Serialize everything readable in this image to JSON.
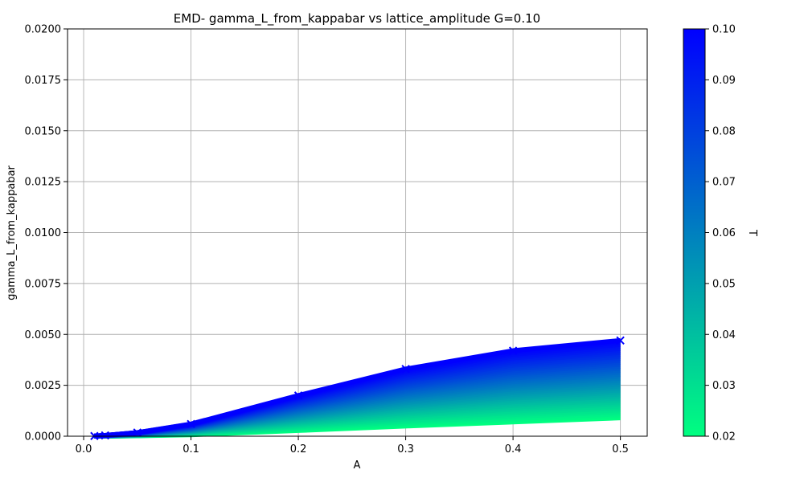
{
  "chart_data": {
    "type": "line",
    "title": "EMD- gamma_L_from_kappabar vs lattice_amplitude G=0.10",
    "xlabel": "A",
    "ylabel": "gamma_L_from_kappabar",
    "xlim": [
      -0.015,
      0.525
    ],
    "ylim": [
      0,
      0.02
    ],
    "x_ticks": [
      0.0,
      0.1,
      0.2,
      0.3,
      0.4,
      0.5
    ],
    "x_tick_labels": [
      "0.0",
      "0.1",
      "0.2",
      "0.3",
      "0.4",
      "0.5"
    ],
    "y_ticks": [
      0,
      0.0025,
      0.005,
      0.0075,
      0.01,
      0.0125,
      0.015,
      0.0175,
      0.02
    ],
    "y_tick_labels": [
      "0.0000",
      "0.0025",
      "0.0050",
      "0.0075",
      "0.0100",
      "0.0125",
      "0.0150",
      "0.0175",
      "0.0200"
    ],
    "grid": true,
    "marker": "x",
    "x": [
      0.01,
      0.02,
      0.05,
      0.1,
      0.2,
      0.3,
      0.4,
      0.5
    ],
    "series_low": {
      "T": 0.02,
      "values": [
        0.0,
        0.0,
        2e-05,
        7e-05,
        0.00028,
        0.0005,
        0.0007,
        0.0009
      ]
    },
    "series_high": {
      "T": 0.1,
      "values": [
        1e-05,
        4e-05,
        0.00018,
        0.0006,
        0.002,
        0.0033,
        0.0042,
        0.0047
      ]
    },
    "colorbar": {
      "label": "T",
      "min": 0.02,
      "max": 0.1,
      "ticks": [
        0.02,
        0.03,
        0.04,
        0.05,
        0.06,
        0.07,
        0.08,
        0.09,
        0.1
      ],
      "tick_labels": [
        "0.02",
        "0.03",
        "0.04",
        "0.05",
        "0.06",
        "0.07",
        "0.08",
        "0.09",
        "0.10"
      ],
      "color_low": "#00ff80",
      "color_high": "#0000ff",
      "colormap": "winter"
    },
    "series_count": 40
  }
}
